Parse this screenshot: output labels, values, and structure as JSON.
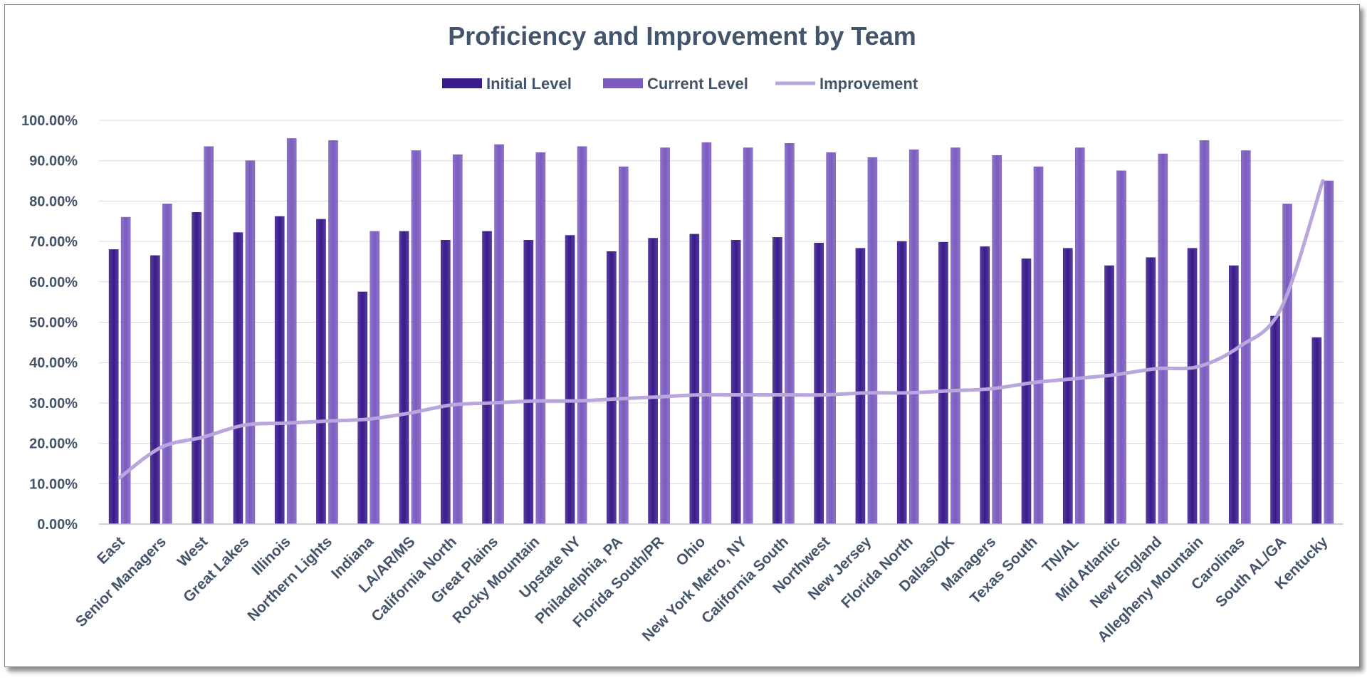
{
  "chart_data": {
    "type": "bar",
    "title": "Proficiency and Improvement  by Team",
    "legend_position": "top",
    "grid": true,
    "ylim": [
      0,
      1
    ],
    "yticks": [
      "0.00%",
      "10.00%",
      "20.00%",
      "30.00%",
      "40.00%",
      "50.00%",
      "60.00%",
      "70.00%",
      "80.00%",
      "90.00%",
      "100.00%"
    ],
    "categories": [
      "East",
      "Senior Managers",
      "West",
      "Great Lakes",
      "Illinois",
      "Northern Lights",
      "Indiana",
      "LA/AR/MS",
      "California North",
      "Great Plains",
      "Rocky Mountain",
      "Upstate NY",
      "Philadelphia, PA",
      "Florida South/PR",
      "Ohio",
      "New York Metro, NY",
      "California South",
      "Northwest",
      "New Jersey",
      "Florida North",
      "Dallas/OK",
      "Managers",
      "Texas South",
      "TN/AL",
      "Mid Atlantic",
      "New England",
      "Allegheny Mountain",
      "Carolinas",
      "South AL/GA",
      "Kentucky"
    ],
    "series": [
      {
        "name": "Initial Level",
        "kind": "bar",
        "color": "#3a1a8c",
        "values": [
          0.68,
          0.665,
          0.772,
          0.722,
          0.762,
          0.755,
          0.575,
          0.725,
          0.703,
          0.725,
          0.703,
          0.715,
          0.675,
          0.708,
          0.718,
          0.703,
          0.71,
          0.696,
          0.683,
          0.7,
          0.698,
          0.687,
          0.657,
          0.683,
          0.64,
          0.66,
          0.683,
          0.64,
          0.515,
          0.462
        ]
      },
      {
        "name": "Current Level",
        "kind": "bar",
        "color": "#7b5bbf",
        "values": [
          0.76,
          0.793,
          0.935,
          0.9,
          0.955,
          0.95,
          0.725,
          0.925,
          0.915,
          0.94,
          0.92,
          0.935,
          0.885,
          0.932,
          0.945,
          0.932,
          0.943,
          0.92,
          0.908,
          0.927,
          0.932,
          0.913,
          0.885,
          0.932,
          0.875,
          0.917,
          0.95,
          0.925,
          0.793,
          0.85
        ]
      },
      {
        "name": "Improvement",
        "kind": "line",
        "color": "#b8a6dc",
        "values": [
          0.115,
          0.19,
          0.215,
          0.245,
          0.25,
          0.255,
          0.26,
          0.275,
          0.295,
          0.3,
          0.305,
          0.305,
          0.31,
          0.315,
          0.32,
          0.32,
          0.32,
          0.32,
          0.325,
          0.325,
          0.33,
          0.335,
          0.35,
          0.36,
          0.37,
          0.385,
          0.39,
          0.44,
          0.535,
          0.85
        ]
      }
    ]
  }
}
